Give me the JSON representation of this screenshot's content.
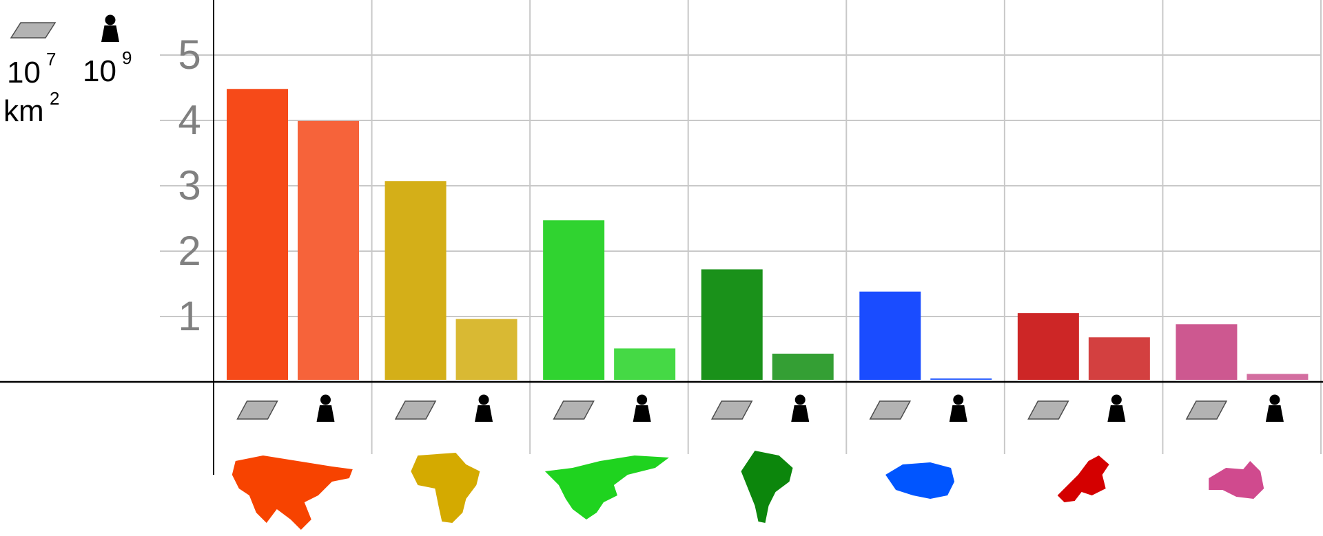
{
  "chart_data": {
    "type": "bar",
    "categories": [
      "Asia",
      "Africa",
      "North America",
      "South America",
      "Antarctica",
      "Europe",
      "Australia/Oceania"
    ],
    "series": [
      {
        "key": "area",
        "unit_legend": {
          "icon": "area-parallelogram-icon",
          "base": "10",
          "exp": "7",
          "unit_base": "km",
          "unit_exp": "2"
        },
        "values": [
          4.45,
          3.04,
          2.44,
          1.69,
          1.35,
          1.02,
          0.85
        ]
      },
      {
        "key": "population",
        "unit_legend": {
          "icon": "person-icon",
          "base": "10",
          "exp": "9"
        },
        "values": [
          3.96,
          0.93,
          0.48,
          0.4,
          0.0,
          0.65,
          0.09
        ]
      }
    ],
    "yticks": [
      "1",
      "2",
      "3",
      "4",
      "5"
    ],
    "ylim": [
      0,
      5.5
    ],
    "grid": true,
    "colors": {
      "area": [
        "#f64a19",
        "#d4af18",
        "#30d330",
        "#1a911a",
        "#1a4cff",
        "#cd2626",
        "#cd5890"
      ],
      "population": [
        "#f6633a",
        "#d9b933",
        "#45d945",
        "#349f34",
        "#3366ff",
        "#d34040",
        "#d36ea0"
      ],
      "maps": [
        "#f74300",
        "#d4aa00",
        "#1fd31f",
        "#0c860c",
        "#0055ff",
        "#d40000",
        "#d04a8e"
      ]
    },
    "category_icons": [
      "continent-map-asia-icon",
      "continent-map-africa-icon",
      "continent-map-north-america-icon",
      "continent-map-south-america-icon",
      "continent-map-antarctica-icon",
      "continent-map-europe-icon",
      "continent-map-oceania-icon"
    ]
  }
}
